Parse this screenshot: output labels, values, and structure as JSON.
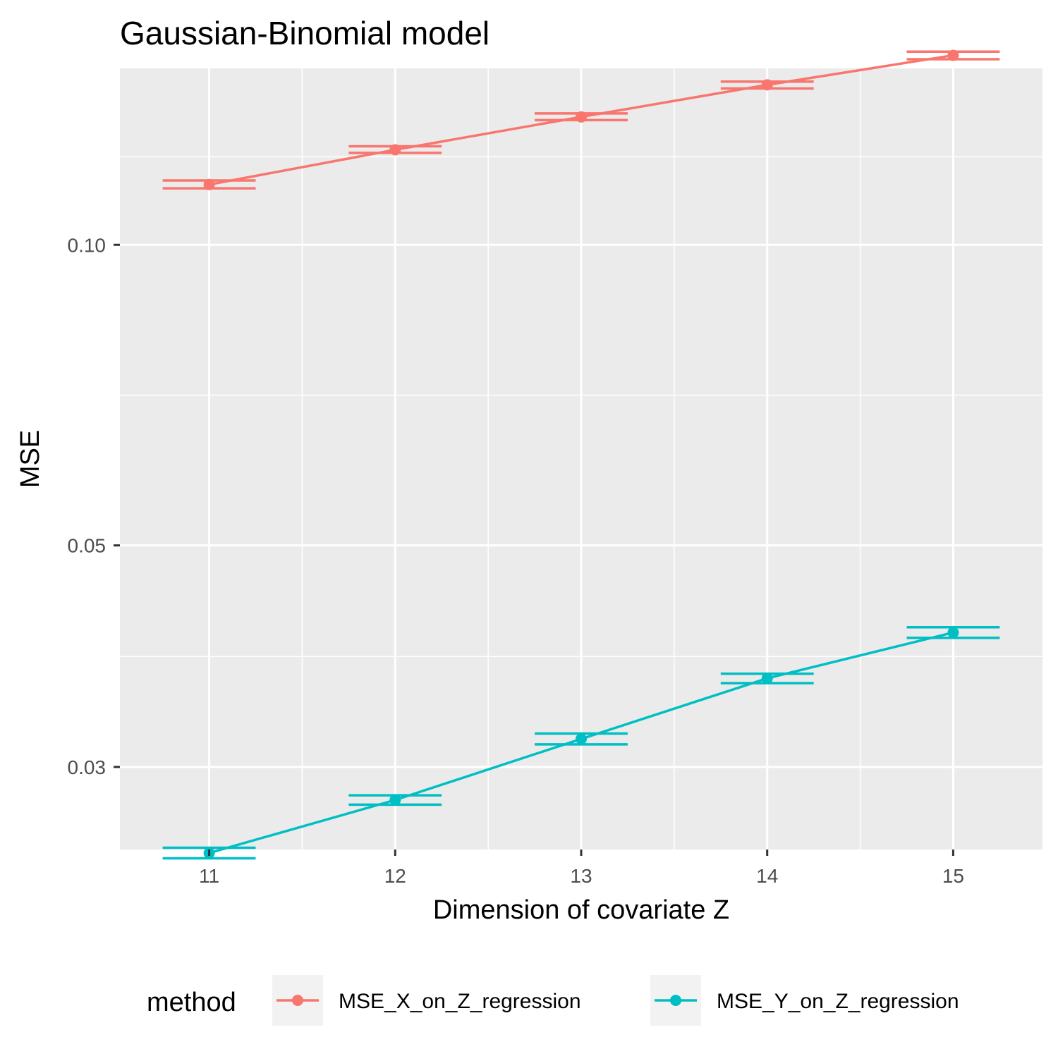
{
  "chart_data": {
    "type": "line",
    "title": "Gaussian-Binomial model",
    "xlabel": "Dimension of covariate Z",
    "ylabel": "MSE",
    "x": [
      11,
      12,
      13,
      14,
      15
    ],
    "xticks": [
      "11",
      "12",
      "13",
      "14",
      "15"
    ],
    "y_scale": "log",
    "ylim": [
      0.0248,
      0.1502
    ],
    "yticks": [
      {
        "value": 0.1,
        "label": "0.10"
      },
      {
        "value": 0.05,
        "label": "0.05"
      },
      {
        "value": 0.03,
        "label": "0.03"
      }
    ],
    "y_minor_breaks": [
      0.0245,
      0.0387,
      0.0707,
      0.1225
    ],
    "grid": true,
    "legend": {
      "title": "method",
      "position": "bottom"
    },
    "series": [
      {
        "name": "MSE_X_on_Z_regression",
        "color": "#F8766D",
        "values": [
          0.1149,
          0.1245,
          0.1343,
          0.1446,
          0.1548
        ],
        "error_low": [
          0.1139,
          0.1236,
          0.1333,
          0.1434,
          0.1534
        ],
        "error_high": [
          0.116,
          0.1255,
          0.1354,
          0.1457,
          0.1561
        ]
      },
      {
        "name": "MSE_Y_on_Z_regression",
        "color": "#00BFC4",
        "values": [
          0.0246,
          0.0278,
          0.032,
          0.0368,
          0.0409
        ],
        "error_low": [
          0.0243,
          0.0275,
          0.0316,
          0.0364,
          0.0404
        ],
        "error_high": [
          0.0249,
          0.0281,
          0.0324,
          0.0372,
          0.0414
        ]
      }
    ]
  }
}
